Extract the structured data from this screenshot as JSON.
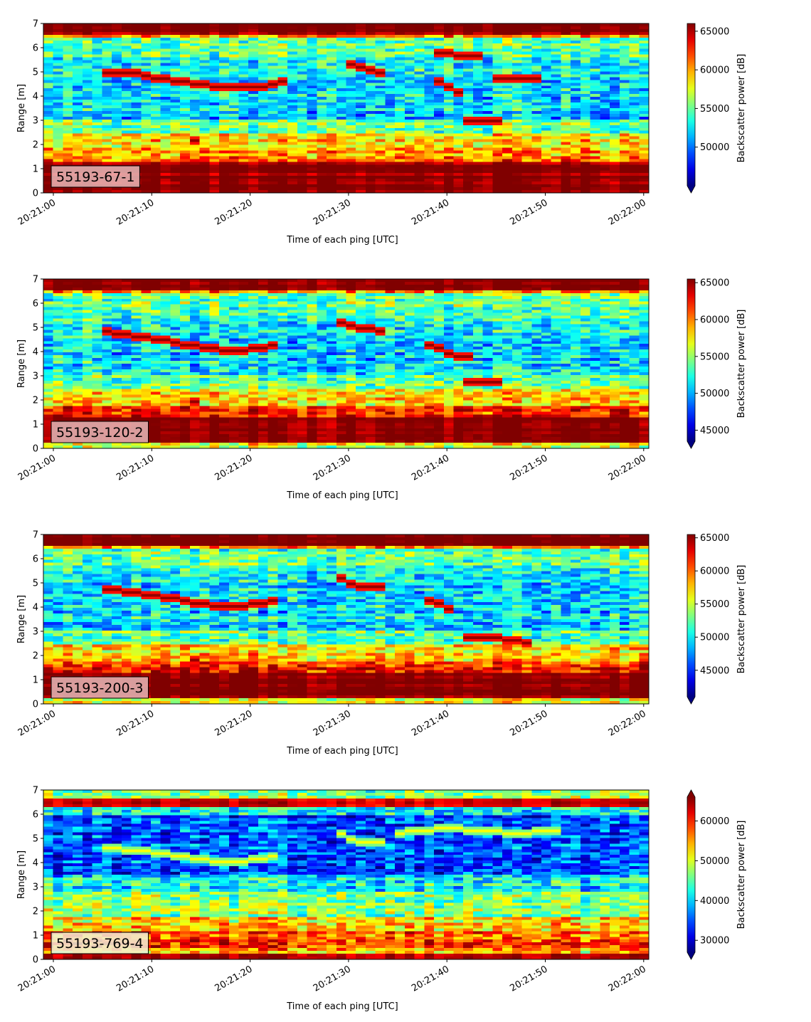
{
  "chart_data": [
    {
      "type": "heatmap",
      "label": "55193-67-1",
      "xlabel": "Time of each ping [UTC]",
      "ylabel": "Range [m]",
      "ylim": [
        0,
        7
      ],
      "yticks": [
        "0",
        "1",
        "2",
        "3",
        "4",
        "5",
        "6",
        "7"
      ],
      "xticks": [
        "20:21:00",
        "20:21:10",
        "20:21:20",
        "20:21:30",
        "20:21:40",
        "20:21:50",
        "20:22:00"
      ],
      "colorbar": {
        "label": "Backscatter power [dB]",
        "ticks": [
          "50000",
          "55000",
          "60000",
          "65000"
        ],
        "tick_values": [
          50000,
          55000,
          60000,
          65000
        ],
        "range": [
          45000,
          66000
        ],
        "extend": "min",
        "colormap": "jet"
      },
      "traces": [
        {
          "points": [
            [
              6,
              4.95
            ],
            [
              9,
              4.9
            ],
            [
              12,
              4.7
            ],
            [
              15,
              4.5
            ],
            [
              18,
              4.35
            ],
            [
              21,
              4.35
            ],
            [
              24,
              4.55
            ]
          ]
        },
        {
          "points": [
            [
              31,
              5.25
            ],
            [
              34,
              5.0
            ]
          ]
        },
        {
          "points": [
            [
              40,
              5.75
            ],
            [
              42,
              5.7
            ],
            [
              44,
              5.7
            ]
          ]
        },
        {
          "points": [
            [
              40,
              4.55
            ],
            [
              42,
              4.1
            ]
          ]
        },
        {
          "points": [
            [
              43,
              3.0
            ],
            [
              46,
              3.0
            ]
          ]
        },
        {
          "points": [
            [
              46,
              4.75
            ],
            [
              50,
              4.75
            ]
          ]
        },
        {
          "points": [
            [
              15,
              2.1
            ]
          ]
        }
      ]
    },
    {
      "type": "heatmap",
      "label": "55193-120-2",
      "xlabel": "Time of each ping [UTC]",
      "ylabel": "Range [m]",
      "ylim": [
        0,
        7
      ],
      "yticks": [
        "0",
        "1",
        "2",
        "3",
        "4",
        "5",
        "6",
        "7"
      ],
      "xticks": [
        "20:21:00",
        "20:21:10",
        "20:21:20",
        "20:21:30",
        "20:21:40",
        "20:21:50",
        "20:22:00"
      ],
      "colorbar": {
        "label": "Backscatter power [dB]",
        "ticks": [
          "45000",
          "50000",
          "55000",
          "60000",
          "65000"
        ],
        "tick_values": [
          45000,
          50000,
          55000,
          60000,
          65000
        ],
        "range": [
          43500,
          65500
        ],
        "extend": "min",
        "colormap": "jet"
      },
      "traces": [
        {
          "points": [
            [
              6,
              4.8
            ],
            [
              9,
              4.65
            ],
            [
              12,
              4.45
            ],
            [
              15,
              4.2
            ],
            [
              18,
              4.05
            ],
            [
              21,
              4.1
            ],
            [
              23,
              4.25
            ]
          ]
        },
        {
          "points": [
            [
              30,
              5.2
            ],
            [
              32,
              5.0
            ],
            [
              34,
              4.85
            ]
          ]
        },
        {
          "points": [
            [
              39,
              4.3
            ],
            [
              41,
              3.9
            ],
            [
              43,
              3.75
            ]
          ]
        },
        {
          "points": [
            [
              43,
              2.7
            ],
            [
              46,
              2.7
            ]
          ]
        },
        {
          "points": [
            [
              15,
              1.9
            ]
          ]
        }
      ]
    },
    {
      "type": "heatmap",
      "label": "55193-200-3",
      "xlabel": "Time of each ping [UTC]",
      "ylabel": "Range [m]",
      "ylim": [
        0,
        7
      ],
      "yticks": [
        "0",
        "1",
        "2",
        "3",
        "4",
        "5",
        "6",
        "7"
      ],
      "xticks": [
        "20:21:00",
        "20:21:10",
        "20:21:20",
        "20:21:30",
        "20:21:40",
        "20:21:50",
        "20:22:00"
      ],
      "colorbar": {
        "label": "Backscatter power [dB]",
        "ticks": [
          "45000",
          "50000",
          "55000",
          "60000",
          "65000"
        ],
        "tick_values": [
          45000,
          50000,
          55000,
          60000,
          65000
        ],
        "range": [
          41000,
          65500
        ],
        "extend": "min",
        "colormap": "jet"
      },
      "traces": [
        {
          "points": [
            [
              6,
              4.75
            ],
            [
              9,
              4.6
            ],
            [
              12,
              4.4
            ],
            [
              15,
              4.15
            ],
            [
              18,
              4.05
            ],
            [
              21,
              4.1
            ],
            [
              23,
              4.2
            ]
          ]
        },
        {
          "points": [
            [
              30,
              5.15
            ],
            [
              32,
              4.85
            ],
            [
              34,
              4.8
            ]
          ]
        },
        {
          "points": [
            [
              39,
              4.3
            ],
            [
              41,
              3.95
            ]
          ]
        },
        {
          "points": [
            [
              43,
              2.75
            ],
            [
              46,
              2.7
            ],
            [
              49,
              2.55
            ]
          ]
        },
        {
          "points": [
            [
              15,
              1.85
            ]
          ]
        }
      ]
    },
    {
      "type": "heatmap",
      "label": "55193-769-4",
      "xlabel": "Time of each ping [UTC]",
      "ylabel": "Range [m]",
      "ylim": [
        0,
        7
      ],
      "yticks": [
        "0",
        "1",
        "2",
        "3",
        "4",
        "5",
        "6",
        "7"
      ],
      "xticks": [
        "20:21:00",
        "20:21:10",
        "20:21:20",
        "20:21:30",
        "20:21:40",
        "20:21:50",
        "20:22:00"
      ],
      "colorbar": {
        "label": "Backscatter power [dB]",
        "ticks": [
          "30000",
          "40000",
          "50000",
          "60000"
        ],
        "tick_values": [
          30000,
          40000,
          50000,
          60000
        ],
        "range": [
          27000,
          66000
        ],
        "extend": "both",
        "colormap": "jet"
      },
      "traces": [
        {
          "points": [
            [
              6,
              4.6
            ],
            [
              9,
              4.5
            ],
            [
              12,
              4.35
            ],
            [
              15,
              4.15
            ],
            [
              18,
              4.05
            ],
            [
              21,
              4.1
            ],
            [
              23,
              4.2
            ]
          ]
        },
        {
          "points": [
            [
              30,
              5.15
            ],
            [
              32,
              4.8
            ],
            [
              34,
              4.85
            ]
          ]
        },
        {
          "points": [
            [
              36,
              5.2
            ],
            [
              40,
              5.4
            ],
            [
              44,
              5.35
            ],
            [
              48,
              5.2
            ],
            [
              52,
              5.3
            ]
          ]
        }
      ]
    }
  ]
}
